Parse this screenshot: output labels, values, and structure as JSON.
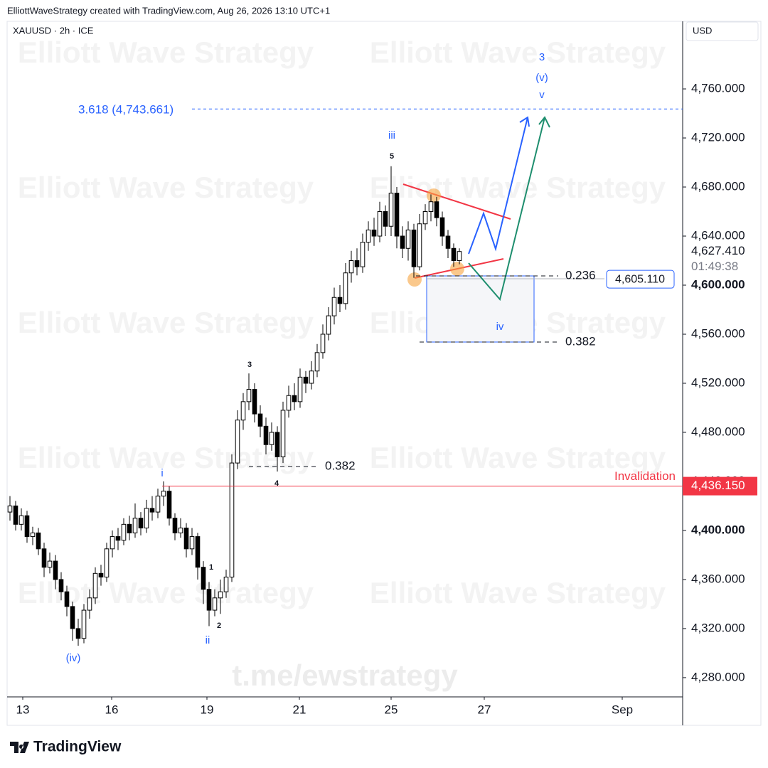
{
  "header": {
    "credit": "ElliottWaveStrategy created with TradingView.com, Aug 26, 2026 13:10 UTC+1",
    "symbol": "XAUUSD · 2h · ICE",
    "currency": "USD",
    "brand": "TradingView"
  },
  "watermarks": {
    "author": "Elliott Wave Strategy",
    "link": "t.me/ewstrategy"
  },
  "chart_data": {
    "type": "candlestick",
    "open": [
      4415,
      4420,
      4405,
      4412,
      4395,
      4398,
      4385,
      4370,
      4375,
      4360,
      4350,
      4338,
      4320,
      4312,
      4335,
      4345,
      4365,
      4362,
      4385,
      4395,
      4392,
      4405,
      4398,
      4410,
      4402,
      4418,
      4415,
      4428,
      4432,
      4410,
      4398,
      4402,
      4385,
      4395,
      4370,
      4352,
      4335,
      4345,
      4350,
      4362,
      4455,
      4490,
      4505,
      4515,
      4495,
      4485,
      4470,
      4480,
      4460,
      4498,
      4510,
      4505,
      4525,
      4520,
      4530,
      4545,
      4560,
      4575,
      4590,
      4585,
      4610,
      4620,
      4615,
      4635,
      4645,
      4640,
      4660,
      4648,
      4675,
      4640,
      4630,
      4645,
      4615,
      4650,
      4660,
      4668,
      4655,
      4640,
      4630,
      4620
    ],
    "high": [
      4428,
      4424,
      4418,
      4416,
      4403,
      4402,
      4390,
      4382,
      4380,
      4366,
      4355,
      4342,
      4328,
      4340,
      4352,
      4370,
      4372,
      4390,
      4400,
      4402,
      4410,
      4412,
      4422,
      4415,
      4425,
      4428,
      4434,
      4440,
      4436,
      4414,
      4410,
      4406,
      4402,
      4398,
      4375,
      4358,
      4352,
      4360,
      4368,
      4462,
      4498,
      4512,
      4528,
      4520,
      4502,
      4492,
      4488,
      4485,
      4505,
      4518,
      4520,
      4532,
      4530,
      4538,
      4552,
      4568,
      4582,
      4598,
      4600,
      4618,
      4628,
      4630,
      4642,
      4652,
      4655,
      4668,
      4665,
      4697,
      4680,
      4648,
      4652,
      4650,
      4658,
      4666,
      4674,
      4672,
      4660,
      4645,
      4634,
      4630
    ],
    "low": [
      4408,
      4400,
      4400,
      4390,
      4388,
      4380,
      4362,
      4365,
      4352,
      4343,
      4330,
      4310,
      4306,
      4308,
      4328,
      4340,
      4355,
      4358,
      4378,
      4384,
      4388,
      4392,
      4394,
      4396,
      4398,
      4408,
      4410,
      4420,
      4404,
      4392,
      4394,
      4378,
      4380,
      4360,
      4340,
      4322,
      4330,
      4332,
      4345,
      4358,
      4450,
      4482,
      4498,
      4488,
      4476,
      4462,
      4465,
      4448,
      4455,
      4492,
      4498,
      4500,
      4512,
      4515,
      4525,
      4540,
      4555,
      4568,
      4578,
      4580,
      4602,
      4608,
      4610,
      4628,
      4632,
      4635,
      4640,
      4640,
      4630,
      4622,
      4620,
      4606,
      4612,
      4645,
      4652,
      4648,
      4632,
      4622,
      4615,
      4617
    ],
    "close": [
      4420,
      4405,
      4412,
      4395,
      4398,
      4385,
      4370,
      4375,
      4360,
      4350,
      4338,
      4320,
      4312,
      4335,
      4345,
      4365,
      4362,
      4385,
      4395,
      4392,
      4405,
      4398,
      4410,
      4402,
      4418,
      4415,
      4428,
      4432,
      4410,
      4398,
      4402,
      4385,
      4395,
      4370,
      4352,
      4335,
      4345,
      4350,
      4362,
      4455,
      4490,
      4505,
      4515,
      4495,
      4485,
      4470,
      4480,
      4460,
      4498,
      4510,
      4505,
      4525,
      4520,
      4530,
      4545,
      4560,
      4575,
      4590,
      4585,
      4610,
      4620,
      4615,
      4635,
      4645,
      4640,
      4660,
      4648,
      4675,
      4640,
      4630,
      4645,
      4615,
      4650,
      4660,
      4668,
      4655,
      4640,
      4630,
      4620,
      4627.41
    ],
    "up_color": "#ffffff",
    "down_color": "#000000",
    "line_color": "#000000",
    "xlim": [
      -0.5,
      118.25
    ],
    "xticks": [
      {
        "value": 2.25,
        "label": "13"
      },
      {
        "value": 17.875,
        "label": "16"
      },
      {
        "value": 34.625,
        "label": "19"
      },
      {
        "value": 50.875,
        "label": "21"
      },
      {
        "value": 67,
        "label": "25"
      },
      {
        "value": 83.375,
        "label": "27"
      },
      {
        "value": 107.625,
        "label": "Sep"
      }
    ],
    "ylim": [
      4264.3,
      4815.1
    ],
    "yticks": [
      {
        "value": 4280,
        "label": "4,280.000"
      },
      {
        "value": 4320,
        "label": "4,320.000"
      },
      {
        "value": 4360,
        "label": "4,360.000"
      },
      {
        "value": 4400,
        "label": "4,400.000"
      },
      {
        "value": 4440,
        "label": "4,440.000"
      },
      {
        "value": 4480,
        "label": "4,480.000"
      },
      {
        "value": 4520,
        "label": "4,520.000"
      },
      {
        "value": 4560,
        "label": "4,560.000"
      },
      {
        "value": 4600,
        "label": "4,600.000"
      },
      {
        "value": 4640,
        "label": "4,640.000"
      },
      {
        "value": 4680,
        "label": "4,680.000"
      },
      {
        "value": 4720,
        "label": "4,720.000"
      },
      {
        "value": 4760,
        "label": "4,760.000"
      }
    ],
    "last_price": {
      "value": 4627.41,
      "label": "4,627.410"
    },
    "countdown": "01:49:38",
    "marked_price": {
      "value": 4605.11,
      "label": "4,605.110"
    },
    "extension": {
      "value": 4743.661,
      "label": "3.618 (4,743.661)"
    },
    "fib_levels": [
      {
        "value": 4607.5,
        "label": "0.236"
      },
      {
        "value": 4553.6,
        "label": "0.382"
      },
      {
        "value": 4452,
        "label": "0.382"
      }
    ],
    "invalidation": {
      "value": 4436.15,
      "label": "4,436.150",
      "title": "Invalidation"
    },
    "waves": [
      "3",
      "(v)",
      "v",
      "iii",
      "5",
      "3",
      "4",
      "1",
      "2",
      "i",
      "ii",
      "(iv)",
      "iv"
    ]
  }
}
